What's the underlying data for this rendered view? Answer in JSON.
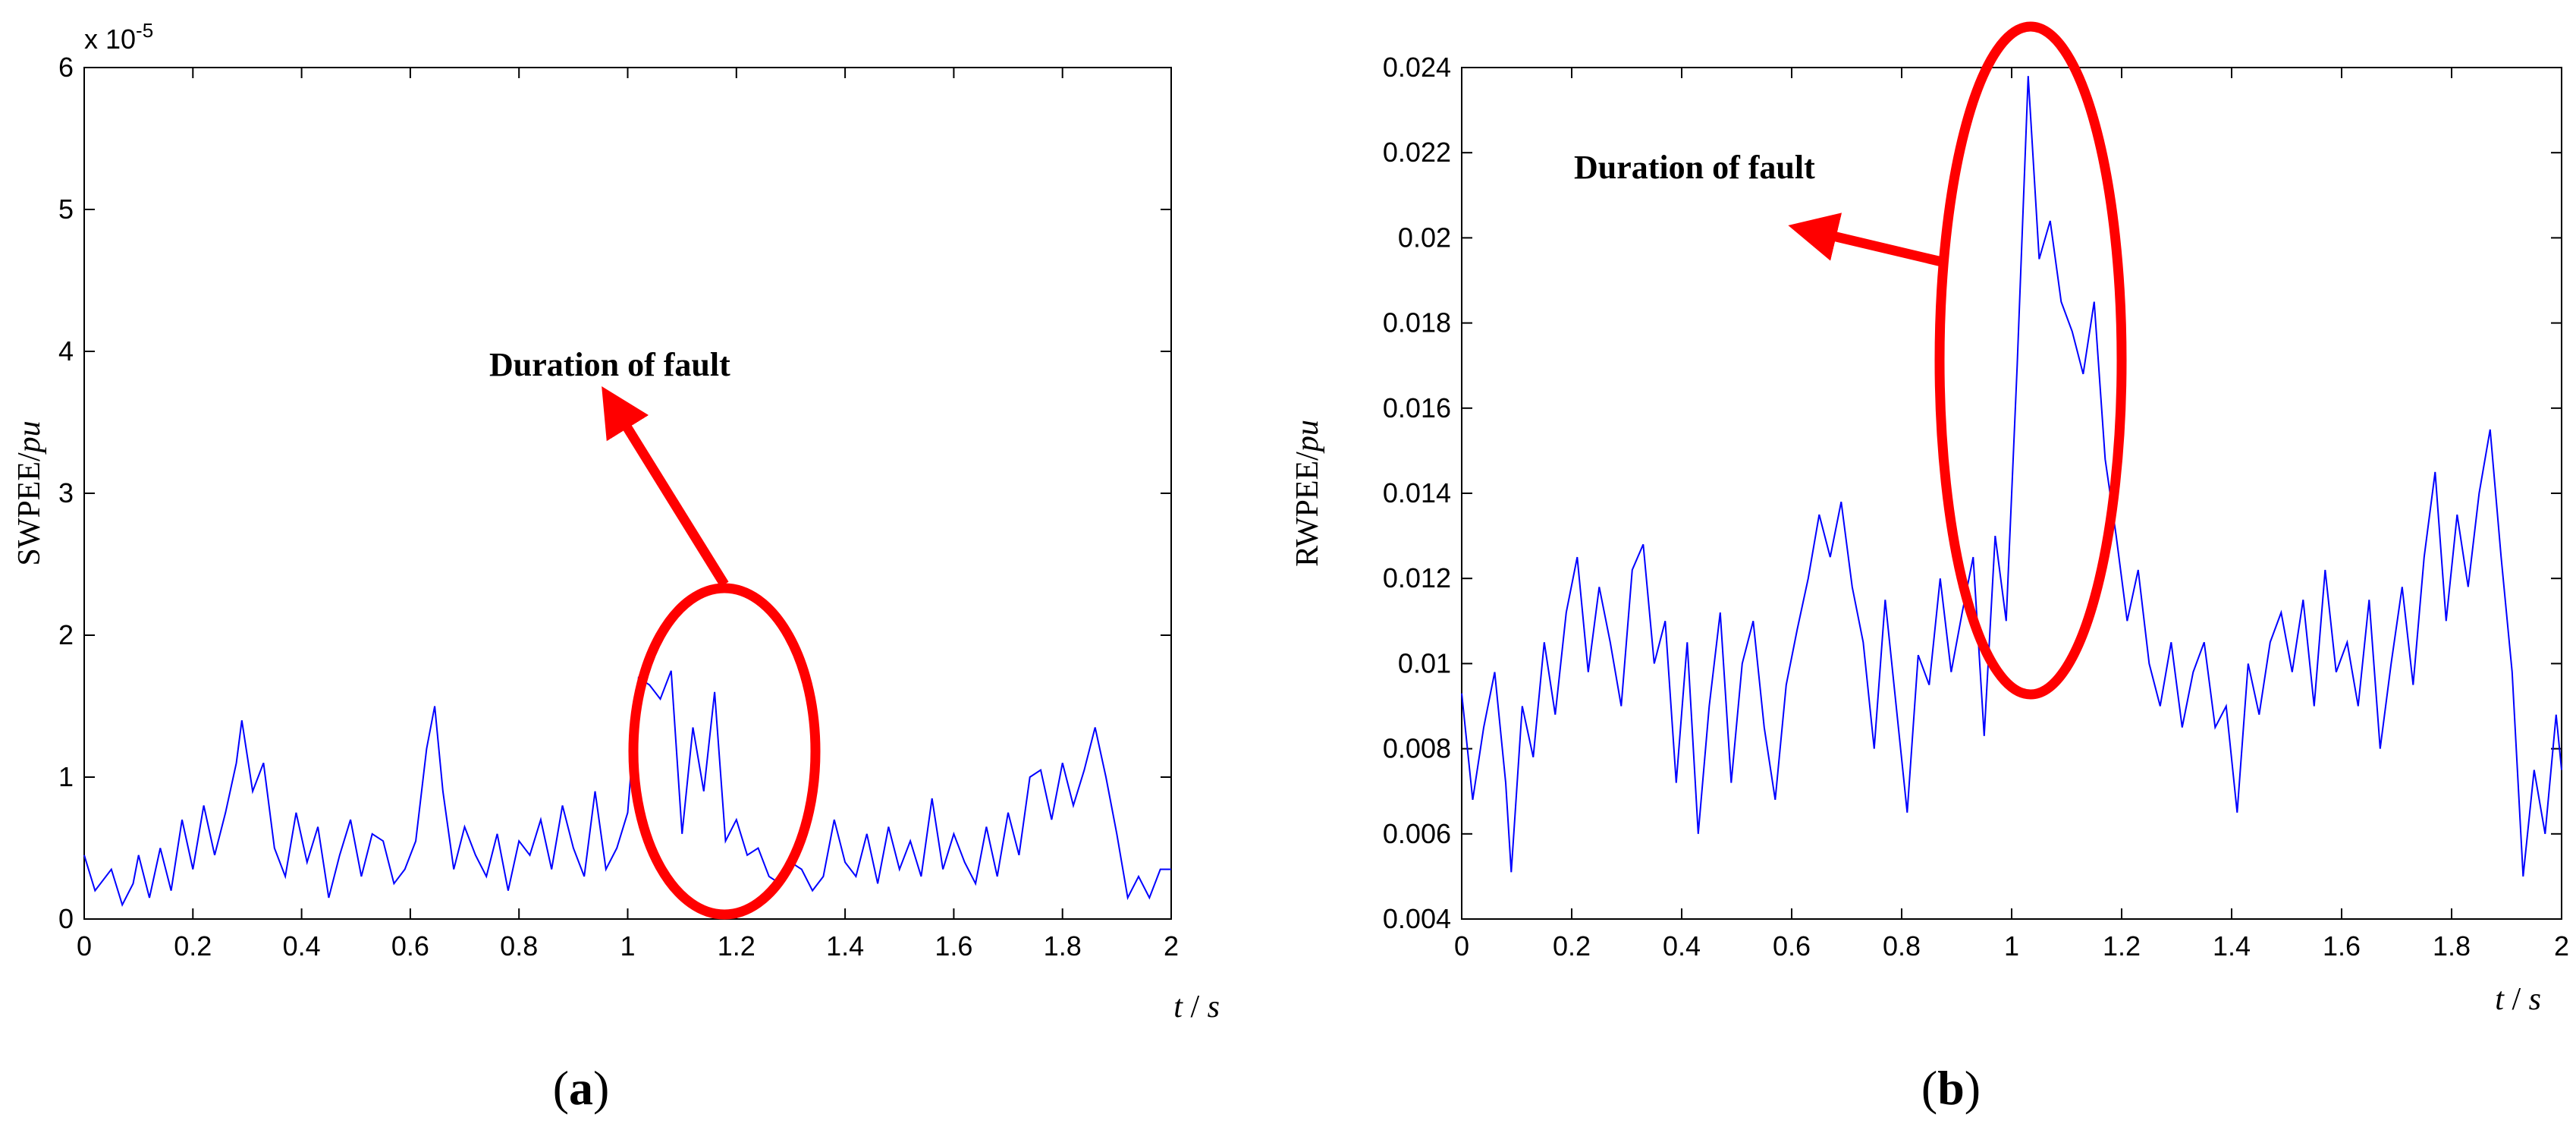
{
  "chart_data": [
    {
      "type": "line",
      "panel_label": "(a)",
      "exponent_label": "x 10",
      "exponent_power": "-5",
      "ylabel": "SWPEE/pu",
      "ylabel_main": "SWPEE/",
      "ylabel_unit": "pu",
      "xlabel": "t / s",
      "xlabel_var": "t",
      "xlabel_sep": " / ",
      "xlabel_unit": "s",
      "xlim": [
        0,
        2
      ],
      "ylim": [
        0,
        6
      ],
      "xticks": [
        "0",
        "0.2",
        "0.4",
        "0.6",
        "0.8",
        "1",
        "1.2",
        "1.4",
        "1.6",
        "1.8",
        "2"
      ],
      "yticks": [
        "0",
        "1",
        "2",
        "3",
        "4",
        "5",
        "6"
      ],
      "line_color": "#0000ff",
      "annotation": {
        "text": "Duration of fault",
        "color": "#ff0000"
      },
      "series": [
        {
          "x": [
            0,
            0.02,
            0.05,
            0.07,
            0.09,
            0.1,
            0.12,
            0.14,
            0.16,
            0.18,
            0.2,
            0.22,
            0.24,
            0.26,
            0.28,
            0.29,
            0.31,
            0.33,
            0.35,
            0.37,
            0.39,
            0.41,
            0.43,
            0.45,
            0.47,
            0.49,
            0.51,
            0.53,
            0.55,
            0.57,
            0.59,
            0.61,
            0.63,
            0.645,
            0.66,
            0.68,
            0.7,
            0.72,
            0.74,
            0.76,
            0.78,
            0.8,
            0.82,
            0.84,
            0.86,
            0.88,
            0.9,
            0.92,
            0.94,
            0.96,
            0.98,
            1.0,
            1.02,
            1.04,
            1.06,
            1.08,
            1.1,
            1.12,
            1.14,
            1.16,
            1.18,
            1.2,
            1.22,
            1.24,
            1.26,
            1.28,
            1.3,
            1.32,
            1.34,
            1.36,
            1.38,
            1.4,
            1.42,
            1.44,
            1.46,
            1.48,
            1.5,
            1.52,
            1.54,
            1.56,
            1.58,
            1.6,
            1.62,
            1.64,
            1.66,
            1.68,
            1.7,
            1.72,
            1.74,
            1.76,
            1.78,
            1.8,
            1.82,
            1.84,
            1.86,
            1.88,
            1.9,
            1.92,
            1.94,
            1.96,
            1.98,
            2.0
          ],
          "values": [
            0.45,
            0.2,
            0.35,
            0.1,
            0.25,
            0.45,
            0.15,
            0.5,
            0.2,
            0.7,
            0.35,
            0.8,
            0.45,
            0.75,
            1.1,
            1.4,
            0.9,
            1.1,
            0.5,
            0.3,
            0.75,
            0.4,
            0.65,
            0.15,
            0.45,
            0.7,
            0.3,
            0.6,
            0.55,
            0.25,
            0.35,
            0.55,
            1.2,
            1.5,
            0.9,
            0.35,
            0.65,
            0.45,
            0.3,
            0.6,
            0.2,
            0.55,
            0.45,
            0.7,
            0.35,
            0.8,
            0.5,
            0.3,
            0.9,
            0.35,
            0.5,
            0.75,
            1.7,
            1.65,
            1.55,
            1.75,
            0.6,
            1.35,
            0.9,
            1.6,
            0.55,
            0.7,
            0.45,
            0.5,
            0.3,
            0.25,
            0.4,
            0.35,
            0.2,
            0.3,
            0.7,
            0.4,
            0.3,
            0.6,
            0.25,
            0.65,
            0.35,
            0.55,
            0.3,
            0.85,
            0.35,
            0.6,
            0.4,
            0.25,
            0.65,
            0.3,
            0.75,
            0.45,
            1.0,
            1.05,
            0.7,
            1.1,
            0.8,
            1.05,
            1.35,
            1.0,
            0.6,
            0.15,
            0.3,
            0.15,
            0.35,
            0.35
          ]
        }
      ]
    },
    {
      "type": "line",
      "panel_label": "(b)",
      "ylabel": "RWPEE/pu",
      "ylabel_main": "RWPEE/",
      "ylabel_unit": "pu",
      "xlabel": "t / s",
      "xlabel_var": "t",
      "xlabel_sep": " / ",
      "xlabel_unit": "s",
      "xlim": [
        0,
        2
      ],
      "ylim": [
        0.004,
        0.024
      ],
      "xticks": [
        "0",
        "0.2",
        "0.4",
        "0.6",
        "0.8",
        "1",
        "1.2",
        "1.4",
        "1.6",
        "1.8",
        "2"
      ],
      "yticks": [
        "0.004",
        "0.006",
        "0.008",
        "0.01",
        "0.012",
        "0.014",
        "0.016",
        "0.018",
        "0.02",
        "0.022",
        "0.024"
      ],
      "line_color": "#0000ff",
      "annotation": {
        "text": "Duration of fault",
        "color": "#ff0000"
      },
      "series": [
        {
          "x": [
            0,
            0.02,
            0.04,
            0.06,
            0.08,
            0.09,
            0.11,
            0.13,
            0.15,
            0.17,
            0.19,
            0.21,
            0.23,
            0.25,
            0.27,
            0.29,
            0.31,
            0.33,
            0.35,
            0.37,
            0.39,
            0.41,
            0.43,
            0.45,
            0.47,
            0.49,
            0.51,
            0.53,
            0.55,
            0.57,
            0.59,
            0.61,
            0.63,
            0.65,
            0.67,
            0.69,
            0.71,
            0.73,
            0.75,
            0.77,
            0.79,
            0.81,
            0.83,
            0.85,
            0.87,
            0.89,
            0.91,
            0.93,
            0.95,
            0.97,
            0.99,
            1.01,
            1.03,
            1.05,
            1.07,
            1.09,
            1.11,
            1.13,
            1.15,
            1.17,
            1.19,
            1.21,
            1.23,
            1.25,
            1.27,
            1.29,
            1.31,
            1.33,
            1.35,
            1.37,
            1.39,
            1.41,
            1.43,
            1.45,
            1.47,
            1.49,
            1.51,
            1.53,
            1.55,
            1.57,
            1.59,
            1.61,
            1.63,
            1.65,
            1.67,
            1.69,
            1.71,
            1.73,
            1.75,
            1.77,
            1.79,
            1.81,
            1.83,
            1.85,
            1.87,
            1.89,
            1.91,
            1.93,
            1.95,
            1.97,
            1.99,
            2.0
          ],
          "values": [
            0.0093,
            0.0068,
            0.0085,
            0.0098,
            0.0072,
            0.0051,
            0.009,
            0.0078,
            0.0105,
            0.0088,
            0.0112,
            0.0125,
            0.0098,
            0.0118,
            0.0105,
            0.009,
            0.0122,
            0.0128,
            0.01,
            0.011,
            0.0072,
            0.0105,
            0.006,
            0.009,
            0.0112,
            0.0072,
            0.01,
            0.011,
            0.0085,
            0.0068,
            0.0095,
            0.0108,
            0.012,
            0.0135,
            0.0125,
            0.0138,
            0.0118,
            0.0105,
            0.008,
            0.0115,
            0.009,
            0.0065,
            0.0102,
            0.0095,
            0.012,
            0.0098,
            0.0112,
            0.0125,
            0.0083,
            0.013,
            0.011,
            0.017,
            0.0238,
            0.0195,
            0.0204,
            0.0185,
            0.0178,
            0.0168,
            0.0185,
            0.0148,
            0.013,
            0.011,
            0.0122,
            0.01,
            0.009,
            0.0105,
            0.0085,
            0.0098,
            0.0105,
            0.0085,
            0.009,
            0.0065,
            0.01,
            0.0088,
            0.0105,
            0.0112,
            0.0098,
            0.0115,
            0.009,
            0.0122,
            0.0098,
            0.0105,
            0.009,
            0.0115,
            0.008,
            0.01,
            0.0118,
            0.0095,
            0.0125,
            0.0145,
            0.011,
            0.0135,
            0.0118,
            0.014,
            0.0155,
            0.0125,
            0.0098,
            0.005,
            0.0075,
            0.006,
            0.0088,
            0.0075
          ]
        }
      ]
    }
  ]
}
